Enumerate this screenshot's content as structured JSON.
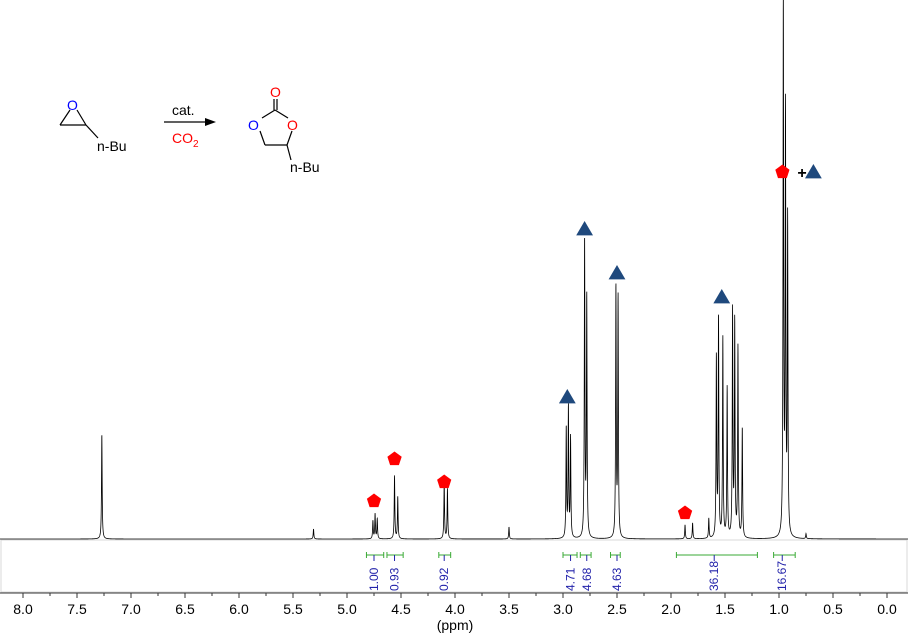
{
  "chart_data": {
    "type": "line",
    "title": "",
    "xlabel": "(ppm)",
    "ylabel": "",
    "xlim": [
      8.3,
      -0.2
    ],
    "x_reversed": true,
    "ylim": [
      0,
      540
    ],
    "grid": false,
    "xticks": [
      "8.0",
      "7.5",
      "7.0",
      "6.5",
      "6.0",
      "5.5",
      "5.0",
      "4.5",
      "4.0",
      "3.5",
      "3.0",
      "2.5",
      "2.0",
      "1.5",
      "1.0",
      "0.5",
      "0.0"
    ],
    "peaks": [
      {
        "ppm": 7.27,
        "intensity": 105
      },
      {
        "ppm": 5.31,
        "intensity": 10
      },
      {
        "ppm": 4.76,
        "intensity": 18
      },
      {
        "ppm": 4.74,
        "intensity": 25
      },
      {
        "ppm": 4.72,
        "intensity": 20
      },
      {
        "ppm": 4.56,
        "intensity": 63
      },
      {
        "ppm": 4.53,
        "intensity": 42
      },
      {
        "ppm": 4.1,
        "intensity": 58
      },
      {
        "ppm": 4.07,
        "intensity": 50
      },
      {
        "ppm": 3.5,
        "intensity": 12
      },
      {
        "ppm": 2.97,
        "intensity": 110
      },
      {
        "ppm": 2.95,
        "intensity": 130
      },
      {
        "ppm": 2.93,
        "intensity": 100
      },
      {
        "ppm": 2.8,
        "intensity": 298
      },
      {
        "ppm": 2.78,
        "intensity": 240
      },
      {
        "ppm": 2.51,
        "intensity": 251
      },
      {
        "ppm": 2.49,
        "intensity": 240
      },
      {
        "ppm": 1.87,
        "intensity": 14
      },
      {
        "ppm": 1.8,
        "intensity": 16
      },
      {
        "ppm": 1.65,
        "intensity": 20
      },
      {
        "ppm": 1.58,
        "intensity": 180
      },
      {
        "ppm": 1.56,
        "intensity": 220
      },
      {
        "ppm": 1.52,
        "intensity": 200
      },
      {
        "ppm": 1.48,
        "intensity": 150
      },
      {
        "ppm": 1.43,
        "intensity": 226
      },
      {
        "ppm": 1.41,
        "intensity": 215
      },
      {
        "ppm": 1.38,
        "intensity": 190
      },
      {
        "ppm": 1.34,
        "intensity": 110
      },
      {
        "ppm": 0.96,
        "intensity": 536
      },
      {
        "ppm": 0.94,
        "intensity": 420
      },
      {
        "ppm": 0.92,
        "intensity": 315
      },
      {
        "ppm": 0.75,
        "intensity": 5
      }
    ],
    "integrals": [
      {
        "from": 4.82,
        "to": 4.66,
        "center": 4.75,
        "label": "1.00"
      },
      {
        "from": 4.63,
        "to": 4.48,
        "center": 4.56,
        "label": "0.93"
      },
      {
        "from": 4.15,
        "to": 4.04,
        "center": 4.1,
        "label": "0.92"
      },
      {
        "from": 3.0,
        "to": 2.87,
        "center": 2.93,
        "label": "4.71"
      },
      {
        "from": 2.84,
        "to": 2.74,
        "center": 2.78,
        "label": "4.68"
      },
      {
        "from": 2.56,
        "to": 2.47,
        "center": 2.5,
        "label": "4.63"
      },
      {
        "from": 1.95,
        "to": 1.2,
        "center": 1.6,
        "label": "36.18"
      },
      {
        "from": 1.05,
        "to": 0.85,
        "center": 0.97,
        "label": "16.67"
      }
    ],
    "markers": [
      {
        "shape": "pentagon",
        "ppm": 4.75,
        "intensity": 38
      },
      {
        "shape": "pentagon",
        "ppm": 4.56,
        "intensity": 80
      },
      {
        "shape": "pentagon",
        "ppm": 4.1,
        "intensity": 57
      },
      {
        "shape": "pentagon",
        "ppm": 1.87,
        "intensity": 26
      },
      {
        "shape": "triangle",
        "ppm": 2.96,
        "intensity": 142
      },
      {
        "shape": "triangle",
        "ppm": 2.8,
        "intensity": 310
      },
      {
        "shape": "triangle",
        "ppm": 2.5,
        "intensity": 266
      },
      {
        "shape": "triangle",
        "ppm": 1.53,
        "intensity": 242
      }
    ],
    "combined_marker": {
      "ppm": 0.7,
      "intensity": 367,
      "plus": "+"
    }
  },
  "colors": {
    "spectrum": "#000000",
    "pentagon": "#ff0000",
    "triangle": "#1f497d",
    "integral_bracket": "#3aaa35",
    "integral_label": "#2222aa",
    "epoxide_O": "#0000ff",
    "carbonate_O": "#ff0000",
    "co2": "#ff0000"
  },
  "scheme": {
    "epoxide_O": "O",
    "reactant_substituent": "n-Bu",
    "catalyst": "cat.",
    "reagent": "CO",
    "reagent_sub": "2",
    "carbonyl_O": "O",
    "ring_O_left": "O",
    "ring_O_right": "O",
    "product_substituent": "n-Bu"
  }
}
